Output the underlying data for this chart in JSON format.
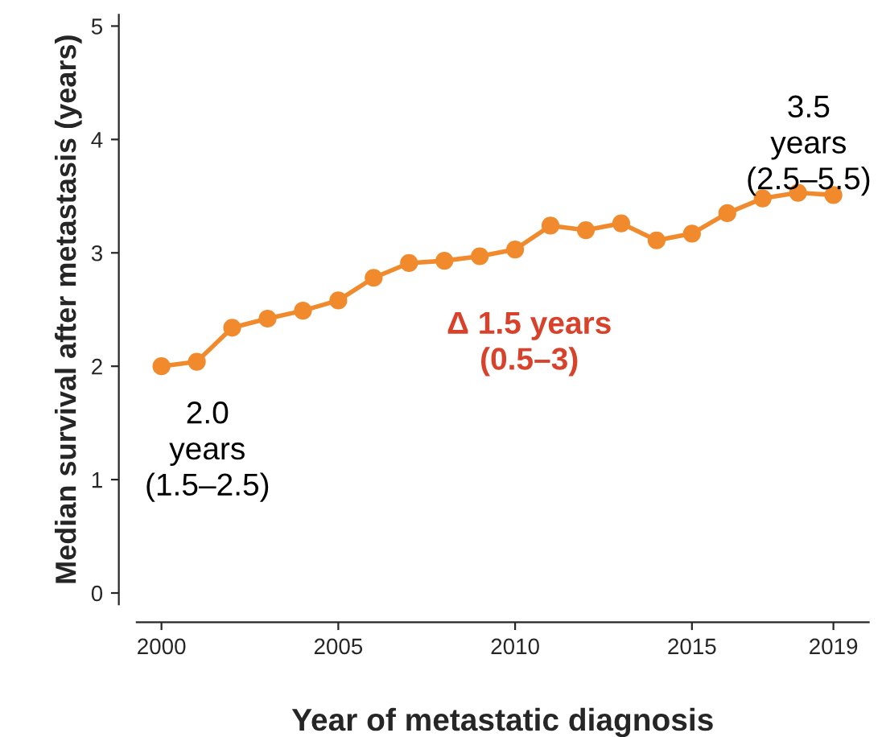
{
  "chart_data": {
    "type": "line",
    "xlabel": "Year of metastatic diagnosis",
    "ylabel": "Median survival after metastasis (years)",
    "x": [
      2000,
      2001,
      2002,
      2003,
      2004,
      2005,
      2006,
      2007,
      2008,
      2009,
      2010,
      2011,
      2012,
      2013,
      2014,
      2015,
      2016,
      2017,
      2018,
      2019
    ],
    "series": [
      {
        "color": "#f08a2c",
        "values": [
          2.0,
          2.04,
          2.34,
          2.42,
          2.49,
          2.58,
          2.78,
          2.91,
          2.93,
          2.97,
          3.03,
          3.24,
          3.2,
          3.26,
          3.11,
          3.17,
          3.35,
          3.48,
          3.53,
          3.51
        ]
      }
    ],
    "xlim": [
      1999.3,
      2020
    ],
    "xticks": [
      2000,
      2005,
      2010,
      2015,
      2019
    ],
    "ylim": [
      -0.1,
      5.1
    ],
    "yticks": [
      0,
      1,
      2,
      3,
      4,
      5
    ],
    "marker": "circle",
    "line_style": "solid",
    "grid": false,
    "legend": false,
    "annotations": [
      "2.0\nyears\n(1.5–2.5)",
      "3.5\nyears\n(2.5–5.5)",
      "Δ 1.5 years\n(0.5–3)"
    ]
  }
}
